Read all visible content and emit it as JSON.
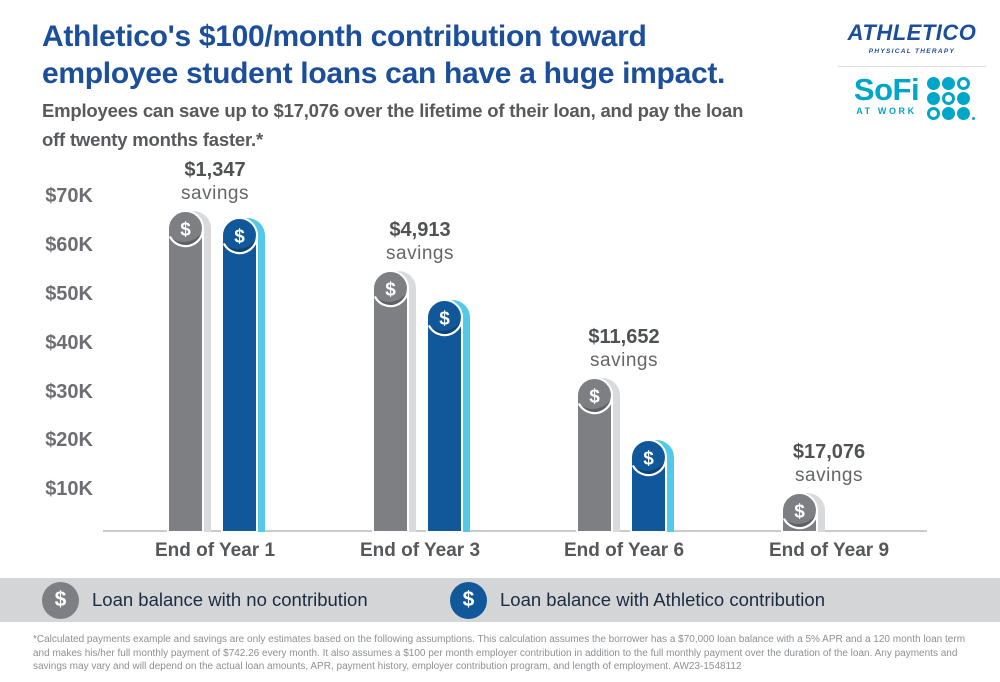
{
  "header": {
    "title_line1": "Athletico's $100/month contribution toward",
    "title_line2": "employee student loans can have a huge impact.",
    "subtitle_line1": "Employees can save up to $17,076 over the lifetime of their loan, and pay the loan",
    "subtitle_line2": "off twenty months faster.*"
  },
  "logos": {
    "athletico": {
      "name": "ATHLETICO",
      "tagline": "PHYSICAL THERAPY"
    },
    "sofi": {
      "name": "SoFi",
      "tagline": "AT WORK"
    }
  },
  "chart_data": {
    "type": "bar",
    "title": "Loan balance over time with and without a $100/month employer contribution",
    "categories": [
      "End of Year 1",
      "End of Year 3",
      "End of Year 6",
      "End of Year 9"
    ],
    "series": [
      {
        "name": "Loan balance with no contribution",
        "color": "#7d7f82",
        "stripe_color": "#d9dadb",
        "values": [
          65800,
          53500,
          31600,
          8000
        ]
      },
      {
        "name": "Loan balance with Athletico contribution",
        "color": "#10589a",
        "stripe_color": "#54c8e8",
        "values": [
          64400,
          47500,
          18900,
          null
        ]
      }
    ],
    "savings": [
      {
        "amount": "$1,347",
        "word": "savings"
      },
      {
        "amount": "$4,913",
        "word": "savings"
      },
      {
        "amount": "$11,652",
        "word": "savings"
      },
      {
        "amount": "$17,076",
        "word": "savings"
      }
    ],
    "y_ticks": [
      {
        "label": "$70K",
        "value": 70000
      },
      {
        "label": "$60K",
        "value": 60000
      },
      {
        "label": "$50K",
        "value": 50000
      },
      {
        "label": "$40K",
        "value": 40000
      },
      {
        "label": "$30K",
        "value": 30000
      },
      {
        "label": "$20K",
        "value": 20000
      },
      {
        "label": "$10K",
        "value": 10000
      }
    ],
    "ylim": [
      0,
      75000
    ],
    "xlabel": "",
    "ylabel": "",
    "grid": false,
    "bar_icon": "$",
    "legend_position": "bottom"
  },
  "legend": {
    "items": [
      {
        "icon": "$",
        "label": "Loan balance with no contribution",
        "color": "#7d7f82"
      },
      {
        "icon": "$",
        "label": "Loan balance with Athletico contribution",
        "color": "#10589a"
      }
    ]
  },
  "footnote": "*Calculated payments example and savings are only estimates based on the following assumptions. This calculation assumes the borrower has a $70,000 loan balance with a 5% APR and a 120 month loan term and makes his/her full monthly payment of $742.26 every month. It also assumes a $100 per month employer contribution in addition to the full monthly payment over the duration of the loan. Any payments and savings may vary and will depend on the actual loan amounts, APR, payment history, employer contribution program, and length of employment. AW23-1548112",
  "colors": {
    "brand_navy": "#1b4e9b",
    "sofi_teal": "#00a6ca",
    "bar_gray": "#7d7f82",
    "bar_blue": "#10589a",
    "stripe_gray": "#d9dadb",
    "stripe_cyan": "#54c8e8",
    "legend_band": "#d3d5d7",
    "text_gray": "#58595b"
  }
}
